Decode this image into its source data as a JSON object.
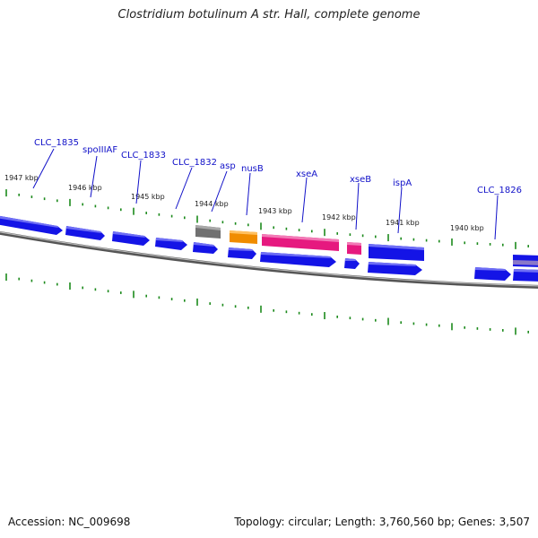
{
  "title": "Clostridium botulinum A str. Hall, complete genome",
  "footer": {
    "accession": "Accession: NC_009698",
    "summary": "Topology: circular; Length: 3,760,560 bp; Genes: 3,507"
  },
  "colors": {
    "cds": "#1414e6",
    "misc": "#707070",
    "nusB": "#f08c00",
    "xse": "#e6197f",
    "backbone": "#8a8a8a",
    "ticks": "#1c8a1c",
    "label": "#1010c8"
  },
  "kbp_marks": [
    "1947 kbp",
    "1946 kbp",
    "1945 kbp",
    "1944 kbp",
    "1943 kbp",
    "1942 kbp",
    "1941 kbp",
    "1940 kbp"
  ],
  "gene_labels": [
    "CLC_1835",
    "spoIIIAF",
    "CLC_1833",
    "CLC_1832",
    "asp",
    "nusB",
    "xseA",
    "xseB",
    "ispA",
    "CLC_1826"
  ]
}
